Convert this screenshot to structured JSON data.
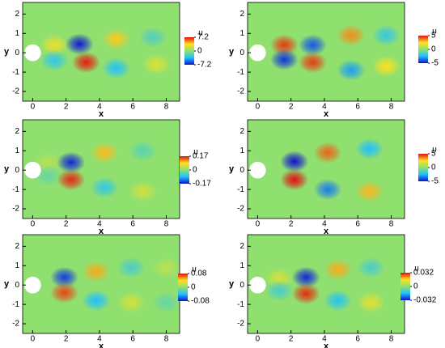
{
  "chart_data": [
    {
      "type": "contour",
      "xlabel": "x",
      "ylabel": "y",
      "xlim": [
        -0.6,
        8.8
      ],
      "ylim": [
        -2.5,
        2.6
      ],
      "xticks": [
        0,
        2,
        4,
        6,
        8
      ],
      "yticks": [
        -2,
        -1,
        0,
        1,
        2
      ],
      "colorbar_title": "u",
      "clim": [
        -7.2,
        7.2
      ],
      "cticks": [
        7.2,
        0,
        -7.2
      ],
      "peaks": {
        "x": [
          1.3,
          1.3,
          2.8,
          3.2,
          5.0,
          5.0,
          7.2,
          7.4
        ],
        "y": [
          0.4,
          -0.4,
          0.45,
          -0.5,
          0.7,
          -0.8,
          0.8,
          -0.6
        ],
        "values": [
          3,
          -3,
          -7,
          7,
          4,
          -3.5,
          -2,
          2.5
        ]
      }
    },
    {
      "type": "contour",
      "xlabel": "x",
      "ylabel": "y",
      "xlim": [
        -0.6,
        8.8
      ],
      "ylim": [
        -2.5,
        2.6
      ],
      "xticks": [
        0,
        2,
        4,
        6,
        8
      ],
      "yticks": [
        -2,
        -1,
        0,
        1,
        2
      ],
      "colorbar_title": "u",
      "clim": [
        -5,
        5
      ],
      "cticks": [
        5,
        0,
        -5
      ],
      "peaks": {
        "x": [
          1.6,
          1.6,
          3.3,
          3.3,
          5.6,
          5.6,
          7.7,
          7.7
        ],
        "y": [
          0.4,
          -0.35,
          0.4,
          -0.5,
          0.9,
          -0.9,
          0.9,
          -0.7
        ],
        "values": [
          4.5,
          -4.5,
          -4,
          4.5,
          3.5,
          -3,
          -2,
          2.5
        ]
      }
    },
    {
      "type": "contour",
      "xlabel": "x",
      "ylabel": "y",
      "xlim": [
        -0.6,
        8.8
      ],
      "ylim": [
        -2.5,
        2.6
      ],
      "xticks": [
        0,
        2,
        4,
        6,
        8
      ],
      "yticks": [
        -2,
        -1,
        0,
        1,
        2
      ],
      "colorbar_title": "u",
      "clim": [
        -0.17,
        0.17
      ],
      "cticks": [
        0.17,
        0,
        -0.17
      ],
      "peaks": {
        "x": [
          0.9,
          0.9,
          2.3,
          2.3,
          4.3,
          4.3,
          6.6,
          6.6
        ],
        "y": [
          0.4,
          -0.3,
          0.4,
          -0.5,
          0.9,
          -0.9,
          -1.1,
          1.0
        ],
        "values": [
          0.03,
          -0.03,
          -0.16,
          0.16,
          0.1,
          -0.07,
          0.05,
          -0.04
        ]
      }
    },
    {
      "type": "contour",
      "xlabel": "x",
      "ylabel": "y",
      "xlim": [
        -0.6,
        8.8
      ],
      "ylim": [
        -2.5,
        2.6
      ],
      "xticks": [
        0,
        2,
        4,
        6,
        8
      ],
      "yticks": [
        -2,
        -1,
        0,
        1,
        2
      ],
      "colorbar_title": "u",
      "clim": [
        -5,
        5
      ],
      "cticks": [
        5,
        0,
        -5
      ],
      "peaks": {
        "x": [
          2.2,
          2.2,
          4.2,
          4.2,
          6.7,
          6.7
        ],
        "y": [
          0.45,
          -0.5,
          0.9,
          -1.0,
          1.1,
          -1.1
        ],
        "values": [
          -5,
          5,
          4,
          -3.5,
          -2.5,
          3
        ]
      }
    },
    {
      "type": "contour",
      "xlabel": "x",
      "ylabel": "y",
      "xlim": [
        -0.6,
        8.8
      ],
      "ylim": [
        -2.5,
        2.6
      ],
      "xticks": [
        0,
        2,
        4,
        6,
        8
      ],
      "yticks": [
        -2,
        -1,
        0,
        1,
        2
      ],
      "colorbar_title": "u",
      "clim": [
        -0.08,
        0.08
      ],
      "cticks": [
        0.08,
        0,
        -0.08
      ],
      "peaks": {
        "x": [
          1.9,
          1.9,
          3.8,
          3.8,
          5.9,
          5.9,
          8.0,
          8.0
        ],
        "y": [
          0.4,
          -0.4,
          0.7,
          -0.8,
          0.9,
          -0.9,
          0.9,
          -0.9
        ],
        "values": [
          -0.07,
          0.07,
          0.05,
          -0.04,
          -0.025,
          0.025,
          0.015,
          -0.015
        ]
      }
    },
    {
      "type": "contour",
      "xlabel": "x",
      "ylabel": "y",
      "xlim": [
        -0.6,
        8.8
      ],
      "ylim": [
        -2.5,
        2.6
      ],
      "xticks": [
        0,
        2,
        4,
        6,
        8
      ],
      "yticks": [
        -2,
        -1,
        0,
        1,
        2
      ],
      "colorbar_title": "u",
      "clim": [
        -0.032,
        0.032
      ],
      "cticks": [
        0.032,
        0,
        -0.032
      ],
      "peaks": {
        "x": [
          1.3,
          1.3,
          2.9,
          2.9,
          4.8,
          4.8,
          6.8,
          6.8
        ],
        "y": [
          0.35,
          -0.3,
          0.4,
          -0.45,
          0.8,
          -0.8,
          0.9,
          -0.9
        ],
        "values": [
          0.01,
          -0.01,
          -0.03,
          0.03,
          0.02,
          -0.015,
          -0.01,
          0.012
        ]
      }
    }
  ]
}
